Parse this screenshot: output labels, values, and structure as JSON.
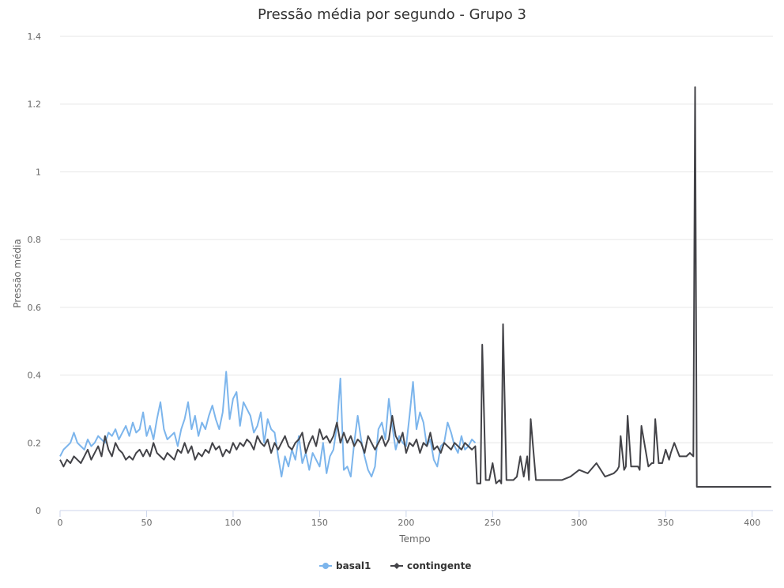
{
  "chart_data": {
    "type": "line",
    "title": "Pressão média por segundo - Grupo 3",
    "xlabel": "Tempo",
    "ylabel": "Pressão média",
    "xlim": [
      0,
      412
    ],
    "ylim": [
      0,
      1.4
    ],
    "x_ticks": [
      "0",
      "50",
      "100",
      "150",
      "200",
      "250",
      "300",
      "350",
      "400"
    ],
    "y_ticks": [
      "0",
      "0.2",
      "0.4",
      "0.6",
      "0.8",
      "1",
      "1.2",
      "1.4"
    ],
    "grid": true,
    "legend_position": "bottom-center",
    "series": [
      {
        "name": "basal1",
        "color": "#7cb5ec",
        "x": [
          0,
          2,
          4,
          6,
          8,
          10,
          12,
          14,
          16,
          18,
          20,
          22,
          24,
          26,
          28,
          30,
          32,
          34,
          36,
          38,
          40,
          42,
          44,
          46,
          48,
          50,
          52,
          54,
          56,
          58,
          60,
          62,
          64,
          66,
          68,
          70,
          72,
          74,
          76,
          78,
          80,
          82,
          84,
          86,
          88,
          90,
          92,
          94,
          96,
          98,
          100,
          102,
          104,
          106,
          108,
          110,
          112,
          114,
          116,
          118,
          120,
          122,
          124,
          126,
          128,
          130,
          132,
          134,
          136,
          138,
          140,
          142,
          144,
          146,
          148,
          150,
          152,
          154,
          156,
          158,
          160,
          162,
          164,
          166,
          168,
          170,
          172,
          174,
          176,
          178,
          180,
          182,
          184,
          186,
          188,
          190,
          192,
          194,
          196,
          198,
          200,
          202,
          204,
          206,
          208,
          210,
          212,
          214,
          216,
          218,
          220,
          222,
          224,
          226,
          228,
          230,
          232,
          234,
          236,
          238,
          240
        ],
        "y": [
          0.16,
          0.18,
          0.19,
          0.2,
          0.23,
          0.2,
          0.19,
          0.18,
          0.21,
          0.19,
          0.2,
          0.22,
          0.21,
          0.2,
          0.23,
          0.22,
          0.24,
          0.21,
          0.23,
          0.25,
          0.22,
          0.26,
          0.23,
          0.24,
          0.29,
          0.22,
          0.25,
          0.21,
          0.27,
          0.32,
          0.24,
          0.21,
          0.22,
          0.23,
          0.19,
          0.24,
          0.27,
          0.32,
          0.24,
          0.28,
          0.22,
          0.26,
          0.24,
          0.28,
          0.31,
          0.27,
          0.24,
          0.29,
          0.41,
          0.27,
          0.33,
          0.35,
          0.25,
          0.32,
          0.3,
          0.28,
          0.23,
          0.25,
          0.29,
          0.2,
          0.27,
          0.24,
          0.23,
          0.16,
          0.1,
          0.16,
          0.13,
          0.18,
          0.15,
          0.22,
          0.14,
          0.17,
          0.12,
          0.17,
          0.15,
          0.13,
          0.2,
          0.11,
          0.16,
          0.18,
          0.25,
          0.39,
          0.12,
          0.13,
          0.1,
          0.2,
          0.28,
          0.21,
          0.16,
          0.12,
          0.1,
          0.13,
          0.24,
          0.26,
          0.21,
          0.33,
          0.25,
          0.18,
          0.22,
          0.2,
          0.19,
          0.28,
          0.38,
          0.24,
          0.29,
          0.26,
          0.19,
          0.21,
          0.15,
          0.13,
          0.19,
          0.2,
          0.26,
          0.23,
          0.19,
          0.17,
          0.22,
          0.18,
          0.19,
          0.21,
          0.2
        ]
      },
      {
        "name": "contingente",
        "color": "#434348",
        "x": [
          0,
          2,
          4,
          6,
          8,
          10,
          12,
          14,
          16,
          18,
          20,
          22,
          24,
          26,
          28,
          30,
          32,
          34,
          36,
          38,
          40,
          42,
          44,
          46,
          48,
          50,
          52,
          54,
          56,
          58,
          60,
          62,
          64,
          66,
          68,
          70,
          72,
          74,
          76,
          78,
          80,
          82,
          84,
          86,
          88,
          90,
          92,
          94,
          96,
          98,
          100,
          102,
          104,
          106,
          108,
          110,
          112,
          114,
          116,
          118,
          120,
          122,
          124,
          126,
          128,
          130,
          132,
          134,
          136,
          138,
          140,
          142,
          144,
          146,
          148,
          150,
          152,
          154,
          156,
          158,
          160,
          162,
          164,
          166,
          168,
          170,
          172,
          174,
          176,
          178,
          180,
          182,
          184,
          186,
          188,
          190,
          192,
          194,
          196,
          198,
          200,
          202,
          204,
          206,
          208,
          210,
          212,
          214,
          216,
          218,
          220,
          222,
          224,
          226,
          228,
          230,
          232,
          234,
          236,
          238,
          240,
          241,
          243,
          244,
          246,
          248,
          250,
          252,
          254,
          255,
          256,
          258,
          260,
          262,
          264,
          266,
          268,
          270,
          271,
          272,
          275,
          280,
          285,
          290,
          295,
          300,
          305,
          310,
          315,
          320,
          322,
          323,
          324,
          326,
          327,
          328,
          330,
          334,
          335,
          336,
          340,
          342,
          343,
          344,
          346,
          348,
          350,
          352,
          353,
          355,
          358,
          360,
          362,
          364,
          366,
          367,
          368,
          370,
          380,
          390,
          400,
          411
        ],
        "y": [
          0.15,
          0.13,
          0.15,
          0.14,
          0.16,
          0.15,
          0.14,
          0.16,
          0.18,
          0.15,
          0.17,
          0.19,
          0.16,
          0.22,
          0.18,
          0.16,
          0.2,
          0.18,
          0.17,
          0.15,
          0.16,
          0.15,
          0.17,
          0.18,
          0.16,
          0.18,
          0.16,
          0.2,
          0.17,
          0.16,
          0.15,
          0.17,
          0.16,
          0.15,
          0.18,
          0.17,
          0.2,
          0.17,
          0.19,
          0.15,
          0.17,
          0.16,
          0.18,
          0.17,
          0.2,
          0.18,
          0.19,
          0.16,
          0.18,
          0.17,
          0.2,
          0.18,
          0.2,
          0.19,
          0.21,
          0.2,
          0.18,
          0.22,
          0.2,
          0.19,
          0.21,
          0.17,
          0.2,
          0.18,
          0.2,
          0.22,
          0.19,
          0.18,
          0.2,
          0.21,
          0.23,
          0.17,
          0.2,
          0.22,
          0.19,
          0.24,
          0.21,
          0.22,
          0.2,
          0.22,
          0.26,
          0.2,
          0.23,
          0.2,
          0.22,
          0.19,
          0.21,
          0.2,
          0.17,
          0.22,
          0.2,
          0.18,
          0.2,
          0.22,
          0.19,
          0.21,
          0.28,
          0.22,
          0.2,
          0.23,
          0.17,
          0.2,
          0.19,
          0.21,
          0.17,
          0.2,
          0.19,
          0.23,
          0.18,
          0.19,
          0.17,
          0.2,
          0.19,
          0.18,
          0.2,
          0.19,
          0.18,
          0.2,
          0.19,
          0.18,
          0.19,
          0.08,
          0.08,
          0.49,
          0.09,
          0.09,
          0.14,
          0.08,
          0.09,
          0.08,
          0.55,
          0.09,
          0.09,
          0.09,
          0.1,
          0.16,
          0.1,
          0.16,
          0.09,
          0.27,
          0.09,
          0.09,
          0.09,
          0.09,
          0.1,
          0.12,
          0.11,
          0.14,
          0.1,
          0.11,
          0.12,
          0.13,
          0.22,
          0.12,
          0.13,
          0.28,
          0.13,
          0.13,
          0.12,
          0.25,
          0.13,
          0.14,
          0.14,
          0.27,
          0.14,
          0.14,
          0.18,
          0.15,
          0.17,
          0.2,
          0.16,
          0.16,
          0.16,
          0.17,
          0.16,
          1.25,
          0.07,
          0.07,
          0.07,
          0.07,
          0.07,
          0.07
        ]
      }
    ]
  }
}
